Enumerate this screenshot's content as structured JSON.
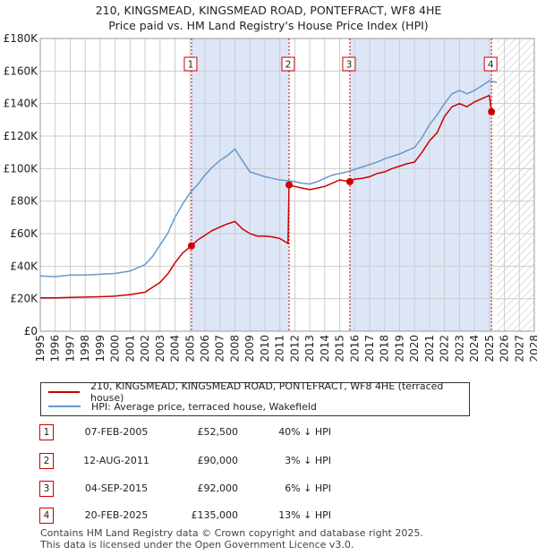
{
  "title_line1": "210, KINGSMEAD, KINGSMEAD ROAD, PONTEFRACT, WF8 4HE",
  "title_line2": "Price paid vs. HM Land Registry's House Price Index (HPI)",
  "colors": {
    "property_line": "#cc0000",
    "hpi_line": "#6699cc",
    "shade": "#dde6f7",
    "grid": "#cccccc",
    "marker_border": "#cc0000"
  },
  "chart_data": {
    "type": "line",
    "xlim": [
      1995,
      2028
    ],
    "ylim": [
      0,
      180000
    ],
    "y_ticks": [
      0,
      20000,
      40000,
      60000,
      80000,
      100000,
      120000,
      140000,
      160000,
      180000
    ],
    "y_tick_labels": [
      "£0",
      "£20K",
      "£40K",
      "£60K",
      "£80K",
      "£100K",
      "£120K",
      "£140K",
      "£160K",
      "£180K"
    ],
    "x_ticks": [
      1995,
      1996,
      1997,
      1998,
      1999,
      2000,
      2001,
      2002,
      2003,
      2004,
      2005,
      2006,
      2007,
      2008,
      2009,
      2010,
      2011,
      2012,
      2013,
      2014,
      2015,
      2016,
      2017,
      2018,
      2019,
      2020,
      2021,
      2022,
      2023,
      2024,
      2025,
      2026,
      2027,
      2028
    ],
    "x_tick_labels": [
      "1995",
      "1996",
      "1997",
      "1998",
      "1999",
      "2000",
      "2001",
      "2002",
      "2003",
      "2004",
      "2005",
      "2006",
      "2007",
      "2008",
      "2009",
      "2010",
      "2011",
      "2012",
      "2013",
      "2014",
      "2015",
      "2016",
      "2017",
      "2018",
      "2019",
      "2020",
      "2021",
      "2022",
      "2023",
      "2024",
      "2025",
      "2026",
      "2027",
      "2028"
    ],
    "shaded_ranges": [
      [
        2005.1,
        2011.6
      ],
      [
        2015.67,
        2025.13
      ]
    ],
    "hatched_from": 2025.5,
    "series": [
      {
        "name": "210, KINGSMEAD, KINGSMEAD ROAD, PONTEFRACT, WF8 4HE (terraced house)",
        "color": "#cc0000",
        "points": [
          [
            1995.0,
            20500
          ],
          [
            1996.0,
            20500
          ],
          [
            1997.0,
            20800
          ],
          [
            1998.0,
            21000
          ],
          [
            1999.0,
            21200
          ],
          [
            2000.0,
            21600
          ],
          [
            2001.0,
            22500
          ],
          [
            2002.0,
            24000
          ],
          [
            2002.5,
            27000
          ],
          [
            2003.0,
            30000
          ],
          [
            2003.5,
            35000
          ],
          [
            2004.0,
            42000
          ],
          [
            2004.5,
            48000
          ],
          [
            2005.1,
            52500
          ],
          [
            2005.5,
            56000
          ],
          [
            2006.0,
            59000
          ],
          [
            2006.5,
            62000
          ],
          [
            2007.0,
            64000
          ],
          [
            2007.5,
            66000
          ],
          [
            2008.0,
            67500
          ],
          [
            2008.5,
            63000
          ],
          [
            2009.0,
            60000
          ],
          [
            2009.5,
            58500
          ],
          [
            2010.0,
            58500
          ],
          [
            2010.5,
            58000
          ],
          [
            2011.0,
            57000
          ],
          [
            2011.55,
            54000
          ],
          [
            2011.62,
            90000
          ],
          [
            2012.0,
            89000
          ],
          [
            2012.5,
            88000
          ],
          [
            2013.0,
            87000
          ],
          [
            2013.5,
            88000
          ],
          [
            2014.0,
            89000
          ],
          [
            2014.5,
            91000
          ],
          [
            2015.0,
            93000
          ],
          [
            2015.68,
            92000
          ],
          [
            2016.0,
            93500
          ],
          [
            2016.5,
            94000
          ],
          [
            2017.0,
            95000
          ],
          [
            2017.5,
            97000
          ],
          [
            2018.0,
            98000
          ],
          [
            2018.5,
            100000
          ],
          [
            2019.0,
            101500
          ],
          [
            2019.5,
            103000
          ],
          [
            2020.0,
            104000
          ],
          [
            2020.5,
            110000
          ],
          [
            2021.0,
            117000
          ],
          [
            2021.5,
            122000
          ],
          [
            2022.0,
            132000
          ],
          [
            2022.5,
            138000
          ],
          [
            2023.0,
            140000
          ],
          [
            2023.5,
            138000
          ],
          [
            2024.0,
            141000
          ],
          [
            2024.5,
            143000
          ],
          [
            2025.0,
            145000
          ],
          [
            2025.14,
            135000
          ],
          [
            2025.3,
            133000
          ]
        ]
      },
      {
        "name": "HPI: Average price, terraced house, Wakefield",
        "color": "#6699cc",
        "points": [
          [
            1995.0,
            34000
          ],
          [
            1996.0,
            33500
          ],
          [
            1997.0,
            34500
          ],
          [
            1998.0,
            34500
          ],
          [
            1999.0,
            35000
          ],
          [
            2000.0,
            35500
          ],
          [
            2001.0,
            37000
          ],
          [
            2002.0,
            41000
          ],
          [
            2002.5,
            46000
          ],
          [
            2003.0,
            53000
          ],
          [
            2003.5,
            60000
          ],
          [
            2004.0,
            70000
          ],
          [
            2004.5,
            78000
          ],
          [
            2005.0,
            85000
          ],
          [
            2005.5,
            90000
          ],
          [
            2006.0,
            96000
          ],
          [
            2006.5,
            101000
          ],
          [
            2007.0,
            105000
          ],
          [
            2007.5,
            108000
          ],
          [
            2008.0,
            112000
          ],
          [
            2008.5,
            105000
          ],
          [
            2009.0,
            98000
          ],
          [
            2009.5,
            96500
          ],
          [
            2010.0,
            95000
          ],
          [
            2010.5,
            94000
          ],
          [
            2011.0,
            93000
          ],
          [
            2011.6,
            92500
          ],
          [
            2012.0,
            92000
          ],
          [
            2012.5,
            91000
          ],
          [
            2013.0,
            90500
          ],
          [
            2013.5,
            92000
          ],
          [
            2014.0,
            94000
          ],
          [
            2014.5,
            96000
          ],
          [
            2015.0,
            97000
          ],
          [
            2015.5,
            98000
          ],
          [
            2016.0,
            99500
          ],
          [
            2016.5,
            101000
          ],
          [
            2017.0,
            102500
          ],
          [
            2017.5,
            104000
          ],
          [
            2018.0,
            106000
          ],
          [
            2018.5,
            107500
          ],
          [
            2019.0,
            109000
          ],
          [
            2019.5,
            111000
          ],
          [
            2020.0,
            113000
          ],
          [
            2020.5,
            119000
          ],
          [
            2021.0,
            127000
          ],
          [
            2021.5,
            133000
          ],
          [
            2022.0,
            140000
          ],
          [
            2022.5,
            146000
          ],
          [
            2023.0,
            148000
          ],
          [
            2023.5,
            146000
          ],
          [
            2024.0,
            148000
          ],
          [
            2024.5,
            151000
          ],
          [
            2025.0,
            154000
          ],
          [
            2025.5,
            153000
          ]
        ]
      }
    ],
    "markers": [
      {
        "label": "1",
        "x": 2005.1,
        "y": 52500
      },
      {
        "label": "2",
        "x": 2011.62,
        "y": 90000
      },
      {
        "label": "3",
        "x": 2015.68,
        "y": 92000
      },
      {
        "label": "4",
        "x": 2025.14,
        "y": 135000
      }
    ]
  },
  "legend": {
    "property": "210, KINGSMEAD, KINGSMEAD ROAD, PONTEFRACT, WF8 4HE (terraced house)",
    "hpi": "HPI: Average price, terraced house, Wakefield"
  },
  "transactions": [
    {
      "num": "1",
      "date": "07-FEB-2005",
      "price": "£52,500",
      "hpi": "40% ↓ HPI"
    },
    {
      "num": "2",
      "date": "12-AUG-2011",
      "price": "£90,000",
      "hpi": "3% ↓ HPI"
    },
    {
      "num": "3",
      "date": "04-SEP-2015",
      "price": "£92,000",
      "hpi": "6% ↓ HPI"
    },
    {
      "num": "4",
      "date": "20-FEB-2025",
      "price": "£135,000",
      "hpi": "13% ↓ HPI"
    }
  ],
  "footer": {
    "line1": "Contains HM Land Registry data © Crown copyright and database right 2025.",
    "line2": "This data is licensed under the Open Government Licence v3.0."
  }
}
